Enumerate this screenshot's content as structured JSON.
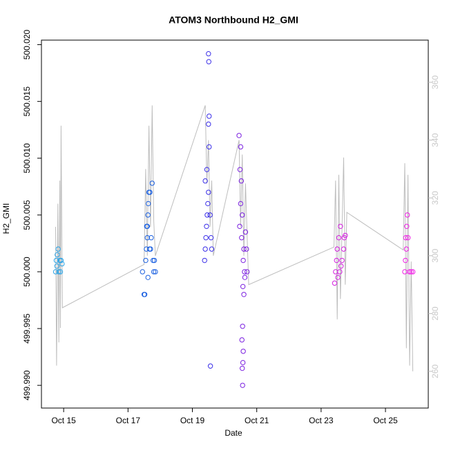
{
  "chart_data": {
    "type": "scatter",
    "title": "ATOM3 Northbound H2_GMI",
    "x_label": "Date",
    "y_label": "H2_GMI",
    "xlim": [
      14.31,
      26.33
    ],
    "xticks": [
      {
        "value": 15,
        "label": "Oct 15"
      },
      {
        "value": 17,
        "label": "Oct 17"
      },
      {
        "value": 19,
        "label": "Oct 19"
      },
      {
        "value": 21,
        "label": "Oct 21"
      },
      {
        "value": 23,
        "label": "Oct 23"
      },
      {
        "value": 25,
        "label": "Oct 25"
      }
    ],
    "ylim": [
      499.988,
      500.0204
    ],
    "yticks": [
      {
        "value": 499.99,
        "label": "499.990"
      },
      {
        "value": 499.995,
        "label": "499.995"
      },
      {
        "value": 500,
        "label": "500.000"
      },
      {
        "value": 500.005,
        "label": "500.005"
      },
      {
        "value": 500.01,
        "label": "500.010"
      },
      {
        "value": 500.015,
        "label": "500.015"
      },
      {
        "value": 500.02,
        "label": "500.020"
      }
    ],
    "y2lim": [
      247.3,
      374.6
    ],
    "y2ticks": [
      260,
      280,
      300,
      320,
      340,
      360
    ],
    "series": [
      {
        "color": "#29a3e6",
        "x": [
          14.75,
          14.77,
          14.79,
          14.8,
          14.83,
          14.85,
          14.88,
          14.9,
          14.92,
          14.95
        ],
        "values": [
          500.0,
          500.001,
          500.0005,
          500.0015,
          500.002,
          500.0,
          500.001,
          500.0,
          500.001,
          500.0007
        ]
      },
      {
        "color": "#1a5fe0",
        "x": [
          17.45,
          17.5,
          17.52,
          17.55,
          17.57,
          17.6,
          17.6,
          17.62,
          17.63,
          17.65,
          17.68,
          17.75,
          17.7,
          17.72,
          17.78,
          17.8,
          17.85,
          17.82,
          17.67,
          17.58,
          17.62
        ],
        "values": [
          500.0,
          499.998,
          499.998,
          500.001,
          500.002,
          500.003,
          500.004,
          500.005,
          500.006,
          500.007,
          500.007,
          500.0078,
          500.002,
          500.003,
          500.001,
          500.0,
          500.0,
          500.001,
          500.002,
          500.004,
          499.9995
        ]
      },
      {
        "color": "#3a2ee8",
        "x": [
          19.38,
          19.4,
          19.42,
          19.44,
          19.46,
          19.48,
          19.5,
          19.4,
          19.45,
          19.52,
          19.5,
          19.52,
          19.51,
          19.5,
          19.56,
          19.58,
          19.55,
          19.6
        ],
        "values": [
          500.001,
          500.002,
          500.003,
          500.004,
          500.005,
          500.006,
          500.007,
          500.008,
          500.009,
          500.011,
          500.013,
          500.0137,
          500.0185,
          500.0192,
          499.9917,
          500.003,
          500.005,
          500.002
        ]
      },
      {
        "color": "#7a1ee0",
        "x": [
          20.45,
          20.5,
          20.48,
          20.52,
          20.5,
          20.55,
          20.47,
          20.53,
          20.6,
          20.58,
          20.62,
          20.57,
          20.6,
          20.56,
          20.54,
          20.58,
          20.57,
          20.55,
          20.56,
          20.65,
          20.68,
          20.7,
          20.63
        ],
        "values": [
          500.012,
          500.011,
          500.009,
          500.008,
          500.006,
          500.005,
          500.004,
          500.003,
          500.002,
          500.001,
          500.0,
          499.9987,
          499.998,
          499.9952,
          499.994,
          499.993,
          499.992,
          499.9915,
          499.99,
          500.0035,
          500.002,
          500.0,
          499.9995
        ]
      },
      {
        "color": "#d41ee0",
        "x": [
          23.42,
          23.45,
          23.48,
          23.5,
          23.55,
          23.6,
          23.75,
          23.52,
          23.65,
          23.7,
          23.72,
          23.58,
          23.62
        ],
        "values": [
          499.999,
          500.0,
          500.001,
          500.002,
          500.003,
          500.004,
          500.0032,
          499.9995,
          500.001,
          500.002,
          500.003,
          500.0,
          500.0005
        ]
      },
      {
        "color": "#f01ee6",
        "x": [
          25.6,
          25.62,
          25.65,
          25.63,
          25.66,
          25.68,
          25.75,
          25.8,
          25.85,
          25.7
        ],
        "values": [
          500.0,
          500.001,
          500.002,
          500.003,
          500.004,
          500.005,
          500.0,
          500.0,
          500.0,
          500.003
        ]
      },
      {
        "type": "line",
        "axis": "y2",
        "color": "#bdbdbd",
        "x": [
          14.75,
          14.78,
          14.82,
          14.85,
          14.88,
          14.9,
          14.92,
          14.96,
          17.5,
          17.55,
          17.6,
          17.65,
          17.7,
          17.75,
          17.8,
          17.85,
          19.4,
          19.45,
          19.5,
          19.55,
          19.6,
          19.65,
          20.45,
          20.5,
          20.55,
          20.6,
          20.65,
          20.75,
          23.4,
          23.45,
          23.5,
          23.55,
          23.6,
          23.7,
          23.75,
          23.8,
          25.55,
          25.6,
          25.65,
          25.7,
          25.75,
          25.8,
          25.85
        ],
        "values": [
          310,
          262,
          318,
          270,
          326,
          275,
          345,
          282,
          297,
          330,
          300,
          345,
          310,
          352,
          312,
          300,
          352,
          325,
          340,
          310,
          326,
          300,
          340,
          310,
          335,
          300,
          325,
          290,
          303,
          326,
          278,
          328,
          285,
          334,
          290,
          315,
          302,
          332,
          268,
          328,
          262,
          298,
          260
        ]
      }
    ]
  }
}
